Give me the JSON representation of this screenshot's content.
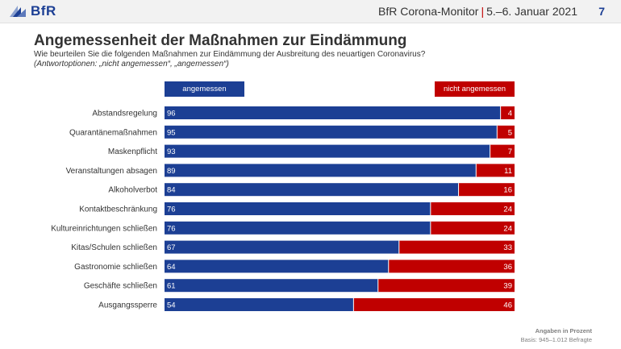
{
  "header": {
    "logo_text": "BfR",
    "source": "BfR Corona-Monitor",
    "separator": "|",
    "date": "5.–6. Januar 2021",
    "page_number": "7"
  },
  "colors": {
    "agree": "#1c3f94",
    "disagree": "#c00000"
  },
  "footer": {
    "unit_note": "Angaben in Prozent",
    "basis": "Basis: 945–1.012 Befragte"
  },
  "chart_data": {
    "type": "bar",
    "orientation": "horizontal",
    "stacked": true,
    "title": "Angemessenheit der Maßnahmen zur Eindämmung",
    "subtitle": "Wie beurteilen Sie die folgenden Maßnahmen zur Eindämmung der Ausbreitung des neuartigen Coronavirus?",
    "answer_options": "(Antwortoptionen: „nicht angemessen“, „angemessen“)",
    "xlim": [
      0,
      100
    ],
    "legend_placement": "top",
    "grid": false,
    "categories": [
      "Abstandsregelung",
      "Quarantänemaßnahmen",
      "Maskenpflicht",
      "Veranstaltungen absagen",
      "Alkoholverbot",
      "Kontaktbeschränkung",
      "Kultureinrichtungen schließen",
      "Kitas/Schulen schließen",
      "Gastronomie schließen",
      "Geschäfte schließen",
      "Ausgangssperre"
    ],
    "series": [
      {
        "name": "angemessen",
        "values": [
          96,
          95,
          93,
          89,
          84,
          76,
          76,
          67,
          64,
          61,
          54
        ]
      },
      {
        "name": "nicht angemessen",
        "values": [
          4,
          5,
          7,
          11,
          16,
          24,
          24,
          33,
          36,
          39,
          46
        ]
      }
    ]
  }
}
